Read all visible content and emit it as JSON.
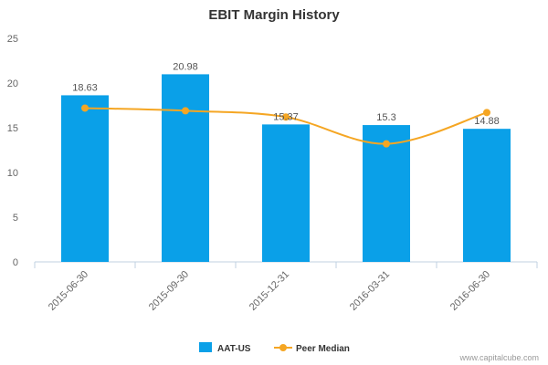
{
  "chart_data": {
    "type": "bar",
    "title": "EBIT Margin History",
    "categories": [
      "2015-06-30",
      "2015-09-30",
      "2015-12-31",
      "2016-03-31",
      "2016-06-30"
    ],
    "series": [
      {
        "name": "AAT-US",
        "type": "bar",
        "color": "#0aa0e8",
        "values": [
          18.63,
          20.98,
          15.37,
          15.3,
          14.88
        ],
        "data_labels": [
          "18.63",
          "20.98",
          "15.37",
          "15.3",
          "14.88"
        ]
      },
      {
        "name": "Peer Median",
        "type": "line",
        "color": "#f5a623",
        "values": [
          17.2,
          16.9,
          16.2,
          13.2,
          16.7
        ]
      }
    ],
    "ylim": [
      0,
      25
    ],
    "yticks": [
      0,
      5,
      10,
      15,
      20,
      25
    ],
    "grid": false,
    "legend": "bottom-center"
  },
  "credit": "www.capitalcube.com"
}
